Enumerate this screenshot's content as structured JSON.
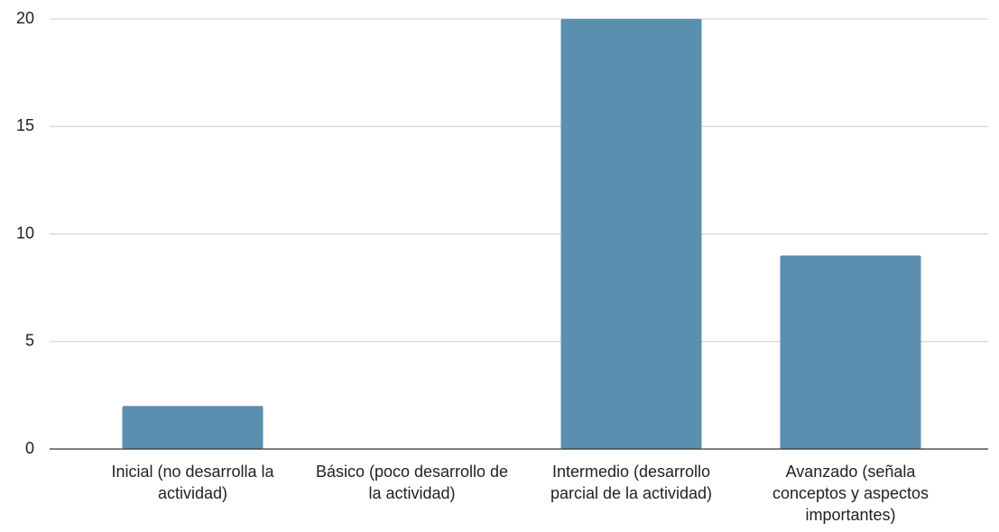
{
  "chart_data": {
    "type": "bar",
    "categories": [
      "Inicial (no desarrolla la actividad)",
      "Básico (poco desarrollo de la actividad)",
      "Intermedio (desarrollo parcial de la actividad)",
      "Avanzado (señala conceptos y aspectos importantes)"
    ],
    "values": [
      2,
      0,
      20,
      9
    ],
    "color": "#5b8fb0",
    "ylim": [
      0,
      20
    ],
    "yticks": [
      0,
      5,
      10,
      15,
      20
    ],
    "grid": true
  }
}
